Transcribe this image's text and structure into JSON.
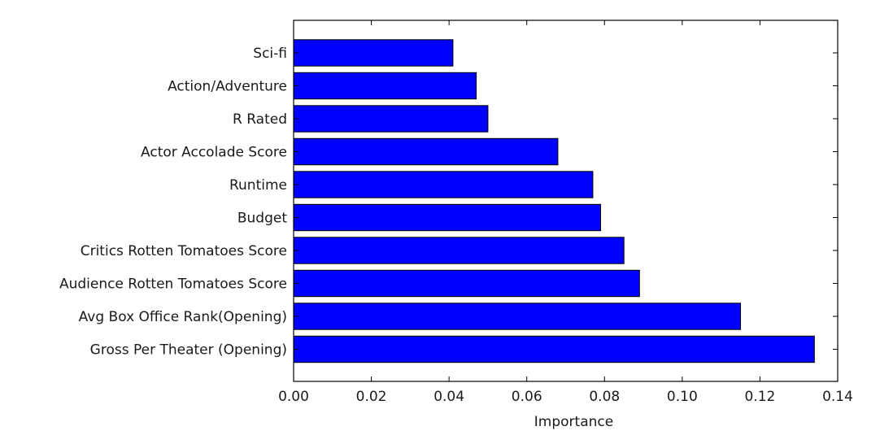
{
  "chart_data": {
    "type": "bar",
    "orientation": "horizontal",
    "title": "",
    "xlabel": "Importance",
    "ylabel": "",
    "xlim": [
      0.0,
      0.14
    ],
    "xticks": [
      "0.00",
      "0.02",
      "0.04",
      "0.06",
      "0.08",
      "0.10",
      "0.12",
      "0.14"
    ],
    "grid": false,
    "bar_color": "#0000ff",
    "categories": [
      "Sci-fi",
      "Action/Adventure",
      "R Rated",
      "Actor Accolade Score",
      "Runtime",
      "Budget",
      "Critics Rotten Tomatoes Score",
      "Audience Rotten Tomatoes Score",
      "Avg Box Office Rank(Opening)",
      "Gross Per Theater (Opening)"
    ],
    "values": [
      0.041,
      0.047,
      0.05,
      0.068,
      0.077,
      0.079,
      0.085,
      0.089,
      0.115,
      0.134
    ]
  }
}
